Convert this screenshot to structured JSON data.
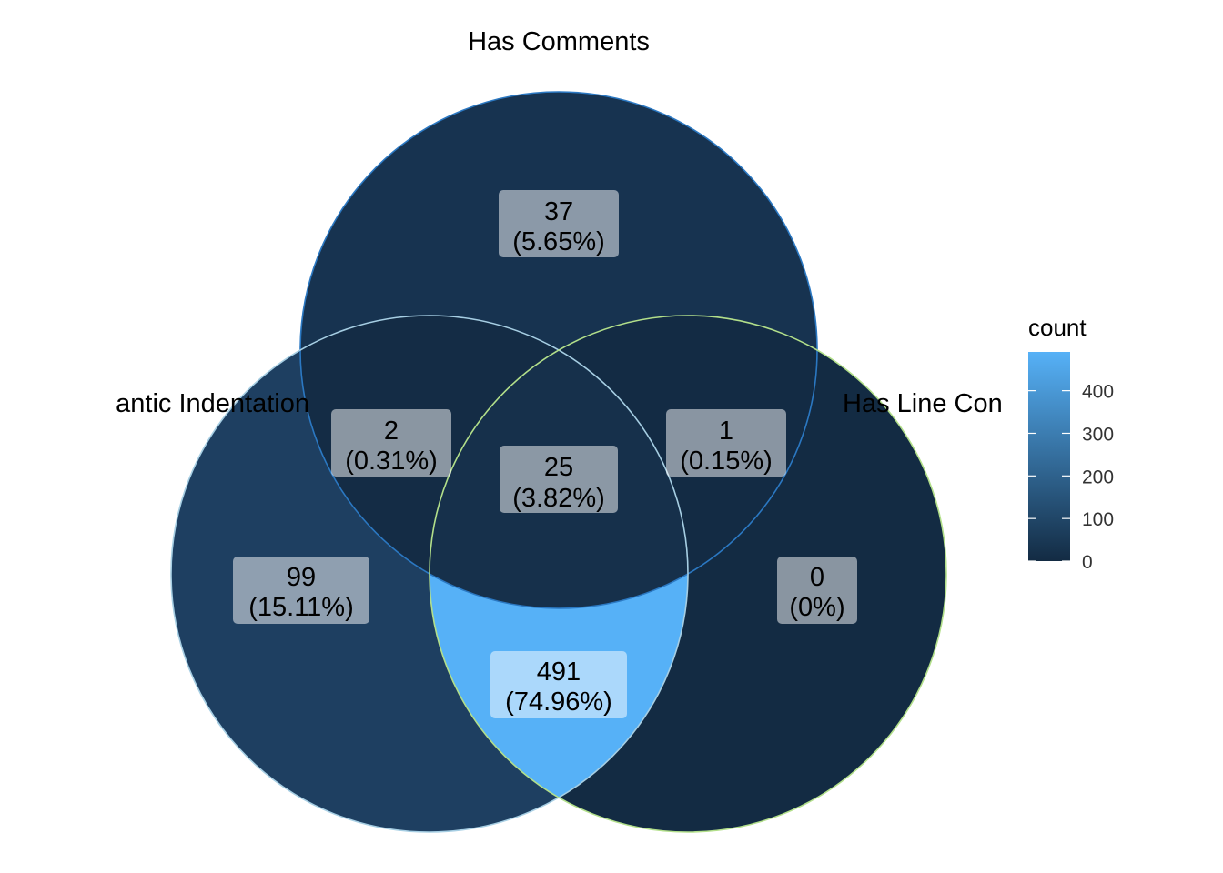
{
  "sets": [
    {
      "key": "A",
      "name": "Has Comments",
      "display": "Has Comments",
      "outline": "#2b78c2"
    },
    {
      "key": "B",
      "name": "Semantic Indentation",
      "display": "antic Indentation",
      "outline": "#a6cee3"
    },
    {
      "key": "C",
      "name": "Has Line Comments",
      "display": "Has Line Con",
      "outline": "#b2df8a"
    }
  ],
  "regions": [
    {
      "id": "A_only",
      "sets": [
        "A"
      ],
      "count": "37",
      "percent": "(5.65%)",
      "value": 37,
      "fill": "#173350"
    },
    {
      "id": "B_only",
      "sets": [
        "B"
      ],
      "count": "99",
      "percent": "(15.11%)",
      "value": 99,
      "fill": "#1e3f61"
    },
    {
      "id": "C_only",
      "sets": [
        "C"
      ],
      "count": "0",
      "percent": "(0%)",
      "value": 0,
      "fill": "#132b43"
    },
    {
      "id": "AB",
      "sets": [
        "A",
        "B"
      ],
      "count": "2",
      "percent": "(0.31%)",
      "value": 2,
      "fill": "#142c45"
    },
    {
      "id": "AC",
      "sets": [
        "A",
        "C"
      ],
      "count": "1",
      "percent": "(0.15%)",
      "value": 1,
      "fill": "#132b44"
    },
    {
      "id": "BC",
      "sets": [
        "B",
        "C"
      ],
      "count": "491",
      "percent": "(74.96%)",
      "value": 491,
      "fill": "#56b1f7"
    },
    {
      "id": "ABC",
      "sets": [
        "A",
        "B",
        "C"
      ],
      "count": "25",
      "percent": "(3.82%)",
      "value": 25,
      "fill": "#16304b"
    }
  ],
  "legend": {
    "title": "count",
    "ticks": [
      {
        "label": "0",
        "value": 0
      },
      {
        "label": "100",
        "value": 100
      },
      {
        "label": "200",
        "value": 200
      },
      {
        "label": "300",
        "value": 300
      },
      {
        "label": "400",
        "value": 400
      }
    ],
    "min": 0,
    "max": 491,
    "color_low": "#132b43",
    "color_high": "#56b1f7"
  }
}
